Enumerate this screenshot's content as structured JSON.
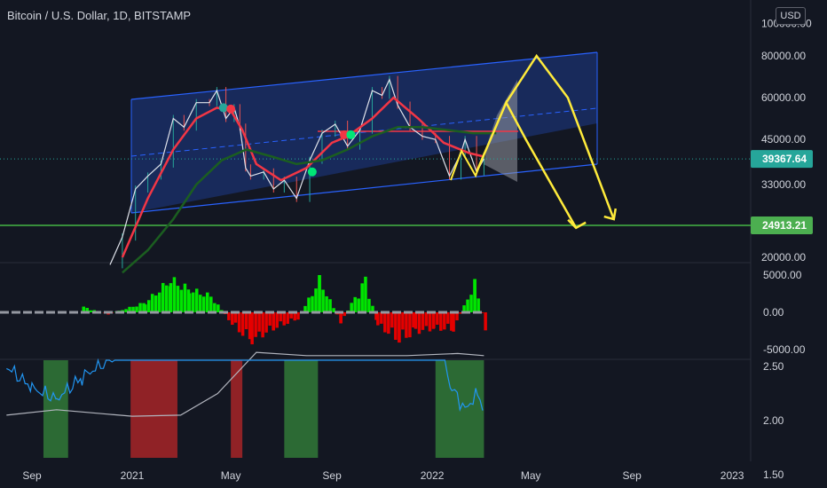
{
  "header": {
    "title": "Bitcoin / U.S. Dollar, 1D, BITSTAMP",
    "currency_button": "USD"
  },
  "price_scale": {
    "ticks": [
      "100000.00",
      "80000.00",
      "60000.00",
      "45000.00",
      "33000.00",
      "20000.00"
    ],
    "current_price": {
      "label": "39367.64",
      "color": "#26a69a"
    },
    "support_level": {
      "label": "24913.21",
      "color": "#4caf50"
    }
  },
  "oscillator_scale": {
    "ticks": [
      "5000.00",
      "0.00",
      "-5000.00"
    ]
  },
  "ratio_scale": {
    "ticks": [
      "2.50",
      "2.00",
      "1.50"
    ]
  },
  "time_axis": {
    "labels": [
      "Sep",
      "2021",
      "May",
      "Sep",
      "2022",
      "May",
      "Sep",
      "2023"
    ]
  },
  "colors": {
    "background": "#131722",
    "channel_fill": "#1e3a8a",
    "channel_line": "#2962ff",
    "ema_fast": "#f23645",
    "ema_slow": "#1b5e20",
    "projection": "#ffeb3b",
    "candle_up": "#26a69a",
    "candle_down": "#ef5350",
    "hist_pos": "#00e600",
    "hist_neg": "#e60000",
    "band_green": "#388e3c",
    "band_red": "#c62828",
    "ratio_line": "#2196f3",
    "ratio_avg": "#b2b5be"
  },
  "chart_data": [
    {
      "type": "line",
      "title": "Bitcoin / U.S. Dollar, 1D, BITSTAMP",
      "series": [
        {
          "name": "BTC close",
          "x": [
            "2020-12-05",
            "2020-12-20",
            "2021-01-05",
            "2021-01-20",
            "2021-02-05",
            "2021-02-20",
            "2021-03-05",
            "2021-03-20",
            "2021-04-05",
            "2021-04-14",
            "2021-04-25",
            "2021-05-05",
            "2021-05-12",
            "2021-05-19",
            "2021-05-25",
            "2021-06-10",
            "2021-06-22",
            "2021-07-05",
            "2021-07-20",
            "2021-08-05",
            "2021-08-20",
            "2021-09-05",
            "2021-09-20",
            "2021-10-05",
            "2021-10-20",
            "2021-11-01",
            "2021-11-10",
            "2021-11-20",
            "2021-12-05",
            "2021-12-20",
            "2022-01-05",
            "2022-01-22",
            "2022-02-05",
            "2022-02-10",
            "2022-02-24",
            "2022-03-05"
          ],
          "values": [
            19000,
            23000,
            32000,
            35000,
            38000,
            52000,
            49000,
            58000,
            58000,
            63000,
            52000,
            56000,
            49000,
            37000,
            35000,
            36000,
            32000,
            34000,
            30000,
            39000,
            47000,
            50000,
            43000,
            48000,
            63000,
            61000,
            68000,
            57000,
            49000,
            46000,
            45000,
            35000,
            41000,
            45000,
            36000,
            39367.64
          ]
        },
        {
          "name": "EMA fast",
          "x": [
            "2020-12-20",
            "2021-01-20",
            "2021-02-20",
            "2021-03-20",
            "2021-04-14",
            "2021-05-01",
            "2021-05-15",
            "2021-06-01",
            "2021-07-01",
            "2021-08-01",
            "2021-09-01",
            "2021-09-20",
            "2021-10-20",
            "2021-11-15",
            "2021-12-15",
            "2022-01-15",
            "2022-02-15",
            "2022-03-05"
          ],
          "values": [
            20000,
            30000,
            42000,
            52000,
            56000,
            55000,
            48000,
            38000,
            34000,
            37000,
            44000,
            46000,
            52000,
            60000,
            52000,
            44000,
            41000,
            40000
          ]
        },
        {
          "name": "EMA slow",
          "x": [
            "2020-12-20",
            "2021-01-20",
            "2021-02-20",
            "2021-03-20",
            "2021-04-20",
            "2021-05-20",
            "2021-06-20",
            "2021-07-20",
            "2021-08-20",
            "2021-09-20",
            "2021-10-20",
            "2021-11-20",
            "2021-12-20",
            "2022-01-20",
            "2022-02-20",
            "2022-03-20"
          ],
          "values": [
            18000,
            21000,
            26000,
            33000,
            39000,
            42000,
            40000,
            38000,
            39000,
            42000,
            46000,
            49000,
            49000,
            48000,
            47000,
            47000
          ]
        }
      ],
      "projection": {
        "x": [
          "2022-02-24",
          "2022-04-01",
          "2022-04-25",
          "2022-06-25",
          "2022-05-08",
          "2022-06-15",
          "2022-08-10"
        ],
        "values": [
          36000,
          58000,
          45000,
          24500,
          80000,
          60000,
          26000
        ]
      },
      "ylim": [
        19000,
        110000
      ],
      "scale": "log",
      "current_price": 39367.64,
      "support": 24913.21
    },
    {
      "type": "bar",
      "series": [
        {
          "name": "oscillator",
          "x": [
            "2020-11-01",
            "2020-12-01",
            "2021-01-15",
            "2021-02-15",
            "2021-03-10",
            "2021-04-05",
            "2021-05-05",
            "2021-05-25",
            "2021-06-20",
            "2021-07-20",
            "2021-08-15",
            "2021-09-10",
            "2021-10-10",
            "2021-10-25",
            "2021-11-20",
            "2021-12-10",
            "2022-01-01",
            "2022-01-25",
            "2022-02-20",
            "2022-03-05"
          ],
          "values": [
            800,
            -300,
            1500,
            5000,
            3500,
            2500,
            -2500,
            -4300,
            -2500,
            -1000,
            5000,
            -1500,
            5000,
            -2000,
            -4300,
            -3000,
            -2500,
            -2600,
            4500,
            -2500
          ]
        }
      ],
      "ylim": [
        -6000,
        6500
      ]
    },
    {
      "type": "line",
      "series": [
        {
          "name": "ratio",
          "x": [
            "2020-08-01",
            "2020-09-01",
            "2020-10-01",
            "2020-11-01",
            "2020-12-01",
            "2021-01-01",
            "2021-02-01",
            "2021-03-01",
            "2021-04-01",
            "2021-05-01",
            "2021-05-20",
            "2021-06-15",
            "2021-07-15",
            "2021-08-15",
            "2021-09-15",
            "2021-10-15",
            "2021-11-15",
            "2021-12-15",
            "2022-01-10",
            "2022-01-25",
            "2022-02-10",
            "2022-02-25",
            "2022-03-05"
          ],
          "values": [
            2.5,
            2.3,
            2.2,
            2.4,
            2.55,
            2.7,
            2.8,
            2.8,
            2.8,
            2.8,
            2.7,
            2.8,
            2.8,
            2.8,
            2.8,
            2.8,
            2.8,
            2.8,
            2.7,
            2.3,
            2.1,
            2.25,
            2.1
          ]
        },
        {
          "name": "ratio average",
          "x": [
            "2020-08-01",
            "2020-10-01",
            "2020-12-01",
            "2021-01-01",
            "2021-03-01",
            "2021-04-15",
            "2021-06-01",
            "2021-08-01",
            "2021-10-01",
            "2021-12-01",
            "2022-02-01",
            "2022-03-05"
          ],
          "values": [
            2.05,
            2.1,
            2.06,
            2.04,
            2.05,
            2.25,
            2.63,
            2.6,
            2.6,
            2.6,
            2.62,
            2.6
          ]
        }
      ],
      "bands": {
        "green": [
          [
            "2020-09-15",
            "2020-10-15"
          ],
          [
            "2021-07-05",
            "2021-08-15"
          ],
          [
            "2022-01-05",
            "2022-03-05"
          ]
        ],
        "red": [
          [
            "2020-12-30",
            "2021-02-25"
          ],
          [
            "2021-05-01",
            "2021-05-15"
          ]
        ]
      },
      "ylim": [
        1.45,
        2.9
      ]
    }
  ]
}
